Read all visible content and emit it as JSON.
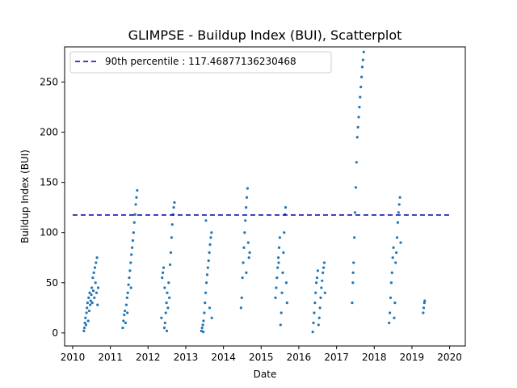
{
  "chart_data": {
    "type": "scatter",
    "title": "GLIMPSE - Buildup Index (BUI), Scatterplot",
    "xlabel": "Date",
    "ylabel": "Buildup Index (BUI)",
    "xlim": [
      "2009-10-15",
      "2020-06-01"
    ],
    "ylim": [
      -13,
      285
    ],
    "xticks": [
      "2010",
      "2011",
      "2012",
      "2013",
      "2014",
      "2015",
      "2016",
      "2017",
      "2018",
      "2019",
      "2020"
    ],
    "yticks": [
      0,
      50,
      100,
      150,
      200,
      250
    ],
    "grid": false,
    "legend_position": "top-left",
    "colors": {
      "points": "#1f77b4",
      "percentile_line": "#0000aa"
    },
    "reference_line": {
      "label": "90th percentile : 117.46877136230468",
      "y": 117.46877136230468,
      "x_range": [
        "2010-01-01",
        "2020-01-01"
      ],
      "style": "dashed"
    },
    "series": [
      {
        "points": [
          {
            "x": "2010-04-20",
            "y": 2
          },
          {
            "x": "2010-04-25",
            "y": 5
          },
          {
            "x": "2010-04-30",
            "y": 10
          },
          {
            "x": "2010-05-05",
            "y": 15
          },
          {
            "x": "2010-05-10",
            "y": 8
          },
          {
            "x": "2010-05-15",
            "y": 20
          },
          {
            "x": "2010-05-20",
            "y": 25
          },
          {
            "x": "2010-05-25",
            "y": 30
          },
          {
            "x": "2010-06-01",
            "y": 12
          },
          {
            "x": "2010-06-05",
            "y": 35
          },
          {
            "x": "2010-06-10",
            "y": 22
          },
          {
            "x": "2010-06-15",
            "y": 40
          },
          {
            "x": "2010-06-20",
            "y": 28
          },
          {
            "x": "2010-06-25",
            "y": 32
          },
          {
            "x": "2010-07-01",
            "y": 38
          },
          {
            "x": "2010-07-05",
            "y": 45
          },
          {
            "x": "2010-07-10",
            "y": 30
          },
          {
            "x": "2010-07-15",
            "y": 55
          },
          {
            "x": "2010-07-20",
            "y": 42
          },
          {
            "x": "2010-07-25",
            "y": 60
          },
          {
            "x": "2010-07-30",
            "y": 35
          },
          {
            "x": "2010-08-05",
            "y": 65
          },
          {
            "x": "2010-08-10",
            "y": 50
          },
          {
            "x": "2010-08-15",
            "y": 70
          },
          {
            "x": "2010-08-20",
            "y": 40
          },
          {
            "x": "2010-08-25",
            "y": 75
          },
          {
            "x": "2010-08-30",
            "y": 28
          },
          {
            "x": "2010-09-05",
            "y": 45
          },
          {
            "x": "2011-05-01",
            "y": 5
          },
          {
            "x": "2011-05-08",
            "y": 12
          },
          {
            "x": "2011-05-15",
            "y": 18
          },
          {
            "x": "2011-05-22",
            "y": 22
          },
          {
            "x": "2011-05-29",
            "y": 10
          },
          {
            "x": "2011-06-05",
            "y": 28
          },
          {
            "x": "2011-06-12",
            "y": 35
          },
          {
            "x": "2011-06-19",
            "y": 40
          },
          {
            "x": "2011-06-26",
            "y": 48
          },
          {
            "x": "2011-07-03",
            "y": 55
          },
          {
            "x": "2011-07-10",
            "y": 62
          },
          {
            "x": "2011-07-17",
            "y": 70
          },
          {
            "x": "2011-07-24",
            "y": 78
          },
          {
            "x": "2011-07-31",
            "y": 85
          },
          {
            "x": "2011-08-07",
            "y": 92
          },
          {
            "x": "2011-08-14",
            "y": 100
          },
          {
            "x": "2011-08-21",
            "y": 110
          },
          {
            "x": "2011-08-28",
            "y": 118
          },
          {
            "x": "2011-09-04",
            "y": 128
          },
          {
            "x": "2011-09-11",
            "y": 135
          },
          {
            "x": "2011-09-18",
            "y": 142
          },
          {
            "x": "2011-06-15",
            "y": 20
          },
          {
            "x": "2011-07-20",
            "y": 45
          },
          {
            "x": "2012-05-10",
            "y": 15
          },
          {
            "x": "2012-05-17",
            "y": 55
          },
          {
            "x": "2012-05-24",
            "y": 60
          },
          {
            "x": "2012-05-31",
            "y": 65
          },
          {
            "x": "2012-06-07",
            "y": 5
          },
          {
            "x": "2012-06-14",
            "y": 10
          },
          {
            "x": "2012-06-21",
            "y": 20
          },
          {
            "x": "2012-06-28",
            "y": 30
          },
          {
            "x": "2012-07-05",
            "y": 40
          },
          {
            "x": "2012-07-12",
            "y": 25
          },
          {
            "x": "2012-07-19",
            "y": 50
          },
          {
            "x": "2012-07-26",
            "y": 35
          },
          {
            "x": "2012-08-02",
            "y": 68
          },
          {
            "x": "2012-08-09",
            "y": 80
          },
          {
            "x": "2012-08-16",
            "y": 95
          },
          {
            "x": "2012-08-23",
            "y": 108
          },
          {
            "x": "2012-08-30",
            "y": 118
          },
          {
            "x": "2012-09-06",
            "y": 125
          },
          {
            "x": "2012-09-13",
            "y": 130
          },
          {
            "x": "2012-06-10",
            "y": 45
          },
          {
            "x": "2012-07-01",
            "y": 2
          },
          {
            "x": "2013-06-01",
            "y": 2
          },
          {
            "x": "2013-06-08",
            "y": 5
          },
          {
            "x": "2013-06-15",
            "y": 8
          },
          {
            "x": "2013-06-22",
            "y": 12
          },
          {
            "x": "2013-06-29",
            "y": 20
          },
          {
            "x": "2013-07-06",
            "y": 30
          },
          {
            "x": "2013-07-13",
            "y": 40
          },
          {
            "x": "2013-07-20",
            "y": 50
          },
          {
            "x": "2013-07-27",
            "y": 58
          },
          {
            "x": "2013-08-03",
            "y": 65
          },
          {
            "x": "2013-08-10",
            "y": 72
          },
          {
            "x": "2013-08-17",
            "y": 80
          },
          {
            "x": "2013-08-24",
            "y": 88
          },
          {
            "x": "2013-08-31",
            "y": 95
          },
          {
            "x": "2013-09-07",
            "y": 100
          },
          {
            "x": "2013-07-15",
            "y": 112
          },
          {
            "x": "2013-09-10",
            "y": 15
          },
          {
            "x": "2013-08-20",
            "y": 25
          },
          {
            "x": "2013-06-20",
            "y": 1
          },
          {
            "x": "2014-06-20",
            "y": 25
          },
          {
            "x": "2014-06-27",
            "y": 35
          },
          {
            "x": "2014-07-04",
            "y": 55
          },
          {
            "x": "2014-07-11",
            "y": 70
          },
          {
            "x": "2014-07-18",
            "y": 85
          },
          {
            "x": "2014-07-25",
            "y": 100
          },
          {
            "x": "2014-08-01",
            "y": 112
          },
          {
            "x": "2014-08-08",
            "y": 125
          },
          {
            "x": "2014-08-15",
            "y": 135
          },
          {
            "x": "2014-08-22",
            "y": 144
          },
          {
            "x": "2014-08-29",
            "y": 90
          },
          {
            "x": "2014-09-05",
            "y": 75
          },
          {
            "x": "2014-09-12",
            "y": 80
          },
          {
            "x": "2014-08-10",
            "y": 60
          },
          {
            "x": "2015-05-20",
            "y": 35
          },
          {
            "x": "2015-05-27",
            "y": 45
          },
          {
            "x": "2015-06-03",
            "y": 55
          },
          {
            "x": "2015-06-10",
            "y": 65
          },
          {
            "x": "2015-06-17",
            "y": 75
          },
          {
            "x": "2015-06-24",
            "y": 85
          },
          {
            "x": "2015-07-01",
            "y": 95
          },
          {
            "x": "2015-07-08",
            "y": 8
          },
          {
            "x": "2015-07-15",
            "y": 20
          },
          {
            "x": "2015-07-22",
            "y": 40
          },
          {
            "x": "2015-07-29",
            "y": 60
          },
          {
            "x": "2015-08-05",
            "y": 80
          },
          {
            "x": "2015-08-12",
            "y": 100
          },
          {
            "x": "2015-08-19",
            "y": 118
          },
          {
            "x": "2015-08-26",
            "y": 125
          },
          {
            "x": "2015-09-02",
            "y": 50
          },
          {
            "x": "2015-09-09",
            "y": 30
          },
          {
            "x": "2015-06-20",
            "y": 70
          },
          {
            "x": "2016-05-15",
            "y": 1
          },
          {
            "x": "2016-05-22",
            "y": 10
          },
          {
            "x": "2016-05-29",
            "y": 20
          },
          {
            "x": "2016-06-05",
            "y": 30
          },
          {
            "x": "2016-06-12",
            "y": 40
          },
          {
            "x": "2016-06-19",
            "y": 50
          },
          {
            "x": "2016-06-26",
            "y": 55
          },
          {
            "x": "2016-07-03",
            "y": 62
          },
          {
            "x": "2016-07-10",
            "y": 8
          },
          {
            "x": "2016-07-17",
            "y": 15
          },
          {
            "x": "2016-07-24",
            "y": 25
          },
          {
            "x": "2016-07-31",
            "y": 35
          },
          {
            "x": "2016-08-07",
            "y": 45
          },
          {
            "x": "2016-08-14",
            "y": 52
          },
          {
            "x": "2016-08-21",
            "y": 60
          },
          {
            "x": "2016-08-28",
            "y": 65
          },
          {
            "x": "2016-09-04",
            "y": 70
          },
          {
            "x": "2016-09-11",
            "y": 40
          },
          {
            "x": "2017-06-01",
            "y": 30
          },
          {
            "x": "2017-06-08",
            "y": 50
          },
          {
            "x": "2017-06-15",
            "y": 70
          },
          {
            "x": "2017-06-22",
            "y": 95
          },
          {
            "x": "2017-06-29",
            "y": 120
          },
          {
            "x": "2017-07-06",
            "y": 145
          },
          {
            "x": "2017-07-13",
            "y": 170
          },
          {
            "x": "2017-07-20",
            "y": 195
          },
          {
            "x": "2017-07-27",
            "y": 205
          },
          {
            "x": "2017-08-03",
            "y": 215
          },
          {
            "x": "2017-08-10",
            "y": 225
          },
          {
            "x": "2017-08-17",
            "y": 235
          },
          {
            "x": "2017-08-24",
            "y": 245
          },
          {
            "x": "2017-08-31",
            "y": 255
          },
          {
            "x": "2017-09-07",
            "y": 265
          },
          {
            "x": "2017-09-14",
            "y": 272
          },
          {
            "x": "2017-09-21",
            "y": 280
          },
          {
            "x": "2017-06-10",
            "y": 60
          },
          {
            "x": "2018-05-25",
            "y": 10
          },
          {
            "x": "2018-06-01",
            "y": 20
          },
          {
            "x": "2018-06-08",
            "y": 35
          },
          {
            "x": "2018-06-15",
            "y": 50
          },
          {
            "x": "2018-06-22",
            "y": 60
          },
          {
            "x": "2018-06-29",
            "y": 75
          },
          {
            "x": "2018-07-06",
            "y": 85
          },
          {
            "x": "2018-07-13",
            "y": 15
          },
          {
            "x": "2018-07-20",
            "y": 30
          },
          {
            "x": "2018-07-27",
            "y": 70
          },
          {
            "x": "2018-08-03",
            "y": 80
          },
          {
            "x": "2018-08-10",
            "y": 95
          },
          {
            "x": "2018-08-17",
            "y": 110
          },
          {
            "x": "2018-08-24",
            "y": 120
          },
          {
            "x": "2018-08-31",
            "y": 128
          },
          {
            "x": "2018-09-07",
            "y": 135
          },
          {
            "x": "2018-09-14",
            "y": 90
          },
          {
            "x": "2019-04-20",
            "y": 20
          },
          {
            "x": "2019-04-25",
            "y": 25
          },
          {
            "x": "2019-05-01",
            "y": 30
          },
          {
            "x": "2019-05-05",
            "y": 32
          }
        ]
      }
    ]
  }
}
